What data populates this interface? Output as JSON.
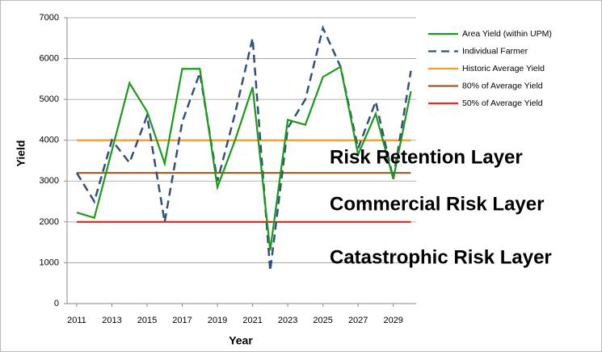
{
  "chart_data": {
    "type": "line",
    "x_label": "Year",
    "y_label": "Yield",
    "x": [
      2011,
      2012,
      2013,
      2014,
      2015,
      2016,
      2017,
      2018,
      2019,
      2020,
      2021,
      2022,
      2023,
      2024,
      2025,
      2026,
      2027,
      2028,
      2029,
      2030
    ],
    "series": [
      {
        "name": "Area Yield (within UPM)",
        "color": "#1a9a1a",
        "line_style": "solid",
        "values": [
          2230,
          2100,
          3750,
          5400,
          4700,
          3430,
          5750,
          5750,
          2850,
          4000,
          5300,
          1300,
          4500,
          4380,
          5550,
          5800,
          3650,
          4650,
          3050,
          5200
        ]
      },
      {
        "name": "Individual Farmer",
        "color": "#34507a",
        "line_style": "dashed",
        "values": [
          3200,
          2500,
          4000,
          3450,
          4600,
          2000,
          4450,
          5650,
          3000,
          4650,
          6500,
          800,
          4300,
          5000,
          6750,
          5800,
          3800,
          4950,
          3050,
          5700
        ]
      },
      {
        "name": "Historic Average Yield",
        "color": "#f79a2e",
        "line_style": "solid",
        "values": [
          4000,
          4000,
          4000,
          4000,
          4000,
          4000,
          4000,
          4000,
          4000,
          4000,
          4000,
          4000,
          4000,
          4000,
          4000,
          4000,
          4000,
          4000,
          4000,
          4000
        ]
      },
      {
        "name": "80% of Average Yield",
        "color": "#9a5a1e",
        "line_style": "solid",
        "values": [
          3200,
          3200,
          3200,
          3200,
          3200,
          3200,
          3200,
          3200,
          3200,
          3200,
          3200,
          3200,
          3200,
          3200,
          3200,
          3200,
          3200,
          3200,
          3200,
          3200
        ]
      },
      {
        "name": "50% of Average Yield",
        "color": "#f0281e",
        "line_style": "solid",
        "values": [
          2000,
          2000,
          2000,
          2000,
          2000,
          2000,
          2000,
          2000,
          2000,
          2000,
          2000,
          2000,
          2000,
          2000,
          2000,
          2000,
          2000,
          2000,
          2000,
          2000
        ]
      }
    ],
    "annotations": [
      "Risk Retention Layer",
      "Commercial Risk Layer",
      "Catastrophic Risk Layer"
    ],
    "xlim": [
      2010.45,
      2030.3
    ],
    "xticks": [
      2011,
      2013,
      2015,
      2017,
      2019,
      2021,
      2023,
      2025,
      2027,
      2029
    ],
    "ylim": [
      0,
      7000
    ],
    "yticks": [
      0,
      1000,
      2000,
      3000,
      4000,
      5000,
      6000,
      7000
    ],
    "grid": true,
    "legend": "right"
  }
}
